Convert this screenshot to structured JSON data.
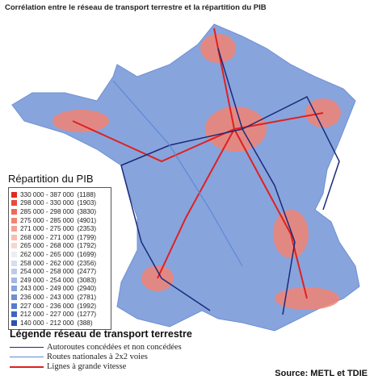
{
  "title": "Corrélation entre le réseau de transport terrestre et la répartition du PIB",
  "pib_legend": {
    "title": "Répartition du PIB",
    "classes": [
      {
        "range": "330 000 - 387 000",
        "count": "(1188)",
        "color": "#e02a22"
      },
      {
        "range": "298 000 - 330 000",
        "count": "(1903)",
        "color": "#e84a3c"
      },
      {
        "range": "285 000 - 298 000",
        "count": "(3830)",
        "color": "#ee6a5a"
      },
      {
        "range": "275 000 - 285 000",
        "count": "(4901)",
        "color": "#f28474"
      },
      {
        "range": "271 000 - 275 000",
        "count": "(2353)",
        "color": "#f5a092"
      },
      {
        "range": "268 000 - 271 000",
        "count": "(1799)",
        "color": "#f8bcb0"
      },
      {
        "range": "265 000 - 268 000",
        "count": "(1792)",
        "color": "#f6d6d0"
      },
      {
        "range": "262 000 - 265 000",
        "count": "(1699)",
        "color": "#eeeef2"
      },
      {
        "range": "258 000 - 262 000",
        "count": "(2356)",
        "color": "#d6def0"
      },
      {
        "range": "254 000 - 258 000",
        "count": "(2477)",
        "color": "#bccbea"
      },
      {
        "range": "249 000 - 254 000",
        "count": "(3083)",
        "color": "#a2b8e4"
      },
      {
        "range": "243 000 - 249 000",
        "count": "(2940)",
        "color": "#88a4dc"
      },
      {
        "range": "236 000 - 243 000",
        "count": "(2781)",
        "color": "#6e90d4"
      },
      {
        "range": "227 000 - 236 000",
        "count": "(1992)",
        "color": "#567ccc"
      },
      {
        "range": "212 000 - 227 000",
        "count": "(1277)",
        "color": "#3e66c0"
      },
      {
        "range": "140 000 - 212 000",
        "count": "(388)",
        "color": "#2a50b0"
      }
    ]
  },
  "transport_legend": {
    "title": "Légende réseau de transport terrestre",
    "items": [
      {
        "label": "Autoroutes concédées et non concédées",
        "color": "#1c2a7a"
      },
      {
        "label": "Routes nationales à 2x2 voies",
        "color": "#5a8ad8"
      },
      {
        "label": "Lignes à grande vitesse",
        "color": "#e02020"
      }
    ]
  },
  "source": "Source: METL et TDIE"
}
